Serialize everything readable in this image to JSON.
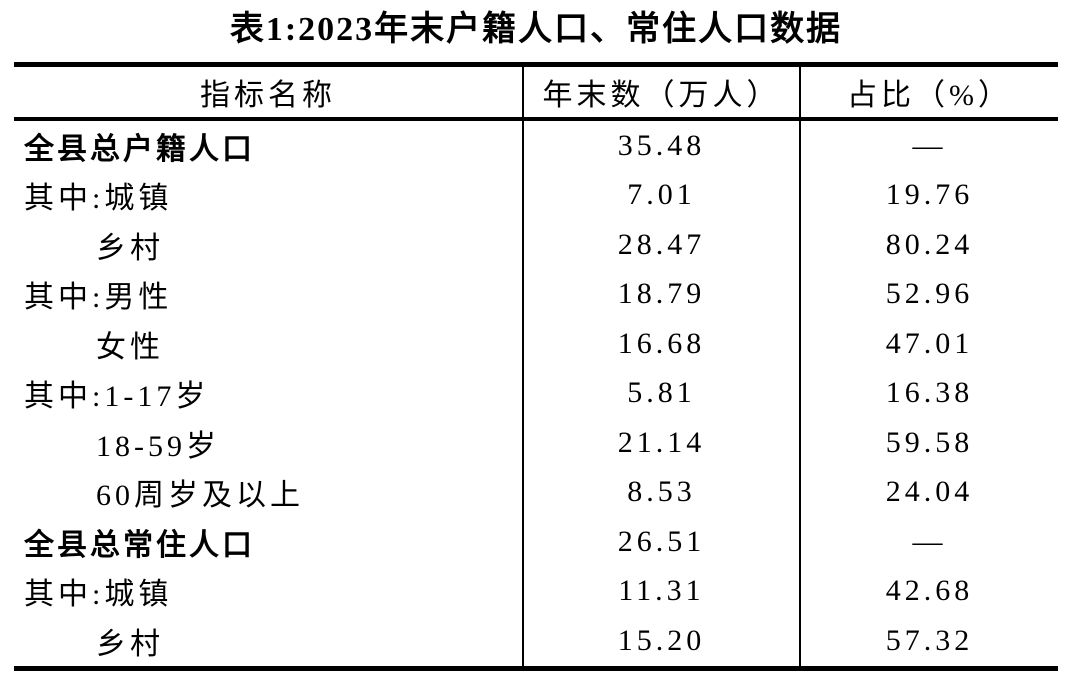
{
  "title": "表1:2023年末户籍人口、常住人口数据",
  "colors": {
    "text": "#000000",
    "background": "#ffffff",
    "border": "#000000"
  },
  "table": {
    "headers": {
      "indicator": "指标名称",
      "value": "年末数（万人）",
      "share": "占比（%）"
    },
    "rows": [
      {
        "label": "全县总户籍人口",
        "value": "35.48",
        "share": "—",
        "bold": true,
        "indent": false
      },
      {
        "label": "其中:城镇",
        "value": "7.01",
        "share": "19.76",
        "bold": false,
        "indent": false
      },
      {
        "label": "乡村",
        "value": "28.47",
        "share": "80.24",
        "bold": false,
        "indent": true
      },
      {
        "label": "其中:男性",
        "value": "18.79",
        "share": "52.96",
        "bold": false,
        "indent": false
      },
      {
        "label": "女性",
        "value": "16.68",
        "share": "47.01",
        "bold": false,
        "indent": true
      },
      {
        "label": "其中:1-17岁",
        "value": "5.81",
        "share": "16.38",
        "bold": false,
        "indent": false
      },
      {
        "label": "18-59岁",
        "value": "21.14",
        "share": "59.58",
        "bold": false,
        "indent": true
      },
      {
        "label": "60周岁及以上",
        "value": "8.53",
        "share": "24.04",
        "bold": false,
        "indent": true
      },
      {
        "label": "全县总常住人口",
        "value": "26.51",
        "share": "—",
        "bold": true,
        "indent": false
      },
      {
        "label": "其中:城镇",
        "value": "11.31",
        "share": "42.68",
        "bold": false,
        "indent": false
      },
      {
        "label": "乡村",
        "value": "15.20",
        "share": "57.32",
        "bold": false,
        "indent": true
      }
    ]
  }
}
